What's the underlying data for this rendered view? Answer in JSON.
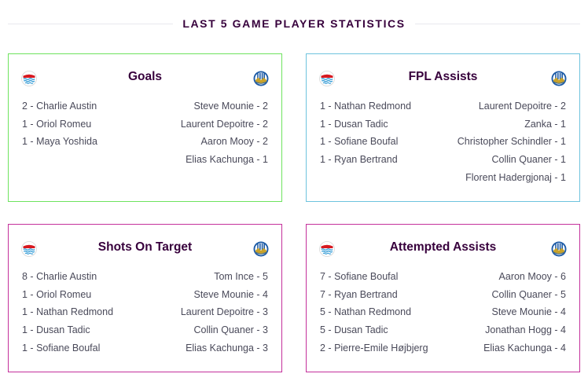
{
  "header": {
    "title": "LAST 5 GAME PLAYER STATISTICS"
  },
  "icons": {
    "home_crest": "southampton-crest-icon",
    "away_crest": "huddersfield-crest-icon"
  },
  "colors": {
    "goals_border": "#6ee35e",
    "assists_border": "#6ec3de",
    "other_border": "#c4309b",
    "title": "#37003c"
  },
  "cards": [
    {
      "title": "Goals",
      "home": [
        {
          "count": "2",
          "player": "Charlie Austin"
        },
        {
          "count": "1",
          "player": "Oriol Romeu"
        },
        {
          "count": "1",
          "player": "Maya Yoshida"
        }
      ],
      "away": [
        {
          "player": "Steve Mounie",
          "count": "2"
        },
        {
          "player": "Laurent Depoitre",
          "count": "2"
        },
        {
          "player": "Aaron Mooy",
          "count": "2"
        },
        {
          "player": "Elias Kachunga",
          "count": "1"
        }
      ]
    },
    {
      "title": "FPL Assists",
      "home": [
        {
          "count": "1",
          "player": "Nathan Redmond"
        },
        {
          "count": "1",
          "player": "Dusan Tadic"
        },
        {
          "count": "1",
          "player": "Sofiane Boufal"
        },
        {
          "count": "1",
          "player": "Ryan Bertrand"
        }
      ],
      "away": [
        {
          "player": "Laurent Depoitre",
          "count": "2"
        },
        {
          "player": "Zanka",
          "count": "1"
        },
        {
          "player": "Christopher Schindler",
          "count": "1"
        },
        {
          "player": "Collin Quaner",
          "count": "1"
        },
        {
          "player": "Florent Hadergjonaj",
          "count": "1"
        }
      ]
    },
    {
      "title": "Shots On Target",
      "home": [
        {
          "count": "8",
          "player": "Charlie Austin"
        },
        {
          "count": "1",
          "player": "Oriol Romeu"
        },
        {
          "count": "1",
          "player": "Nathan Redmond"
        },
        {
          "count": "1",
          "player": "Dusan Tadic"
        },
        {
          "count": "1",
          "player": "Sofiane Boufal"
        }
      ],
      "away": [
        {
          "player": "Tom Ince",
          "count": "5"
        },
        {
          "player": "Steve Mounie",
          "count": "4"
        },
        {
          "player": "Laurent Depoitre",
          "count": "3"
        },
        {
          "player": "Collin Quaner",
          "count": "3"
        },
        {
          "player": "Elias Kachunga",
          "count": "3"
        }
      ]
    },
    {
      "title": "Attempted Assists",
      "home": [
        {
          "count": "7",
          "player": "Sofiane Boufal"
        },
        {
          "count": "7",
          "player": "Ryan Bertrand"
        },
        {
          "count": "5",
          "player": "Nathan Redmond"
        },
        {
          "count": "5",
          "player": "Dusan Tadic"
        },
        {
          "count": "2",
          "player": "Pierre-Emile Højbjerg"
        }
      ],
      "away": [
        {
          "player": "Aaron Mooy",
          "count": "6"
        },
        {
          "player": "Collin Quaner",
          "count": "5"
        },
        {
          "player": "Steve Mounie",
          "count": "4"
        },
        {
          "player": "Jonathan Hogg",
          "count": "4"
        },
        {
          "player": "Elias Kachunga",
          "count": "4"
        }
      ]
    }
  ]
}
